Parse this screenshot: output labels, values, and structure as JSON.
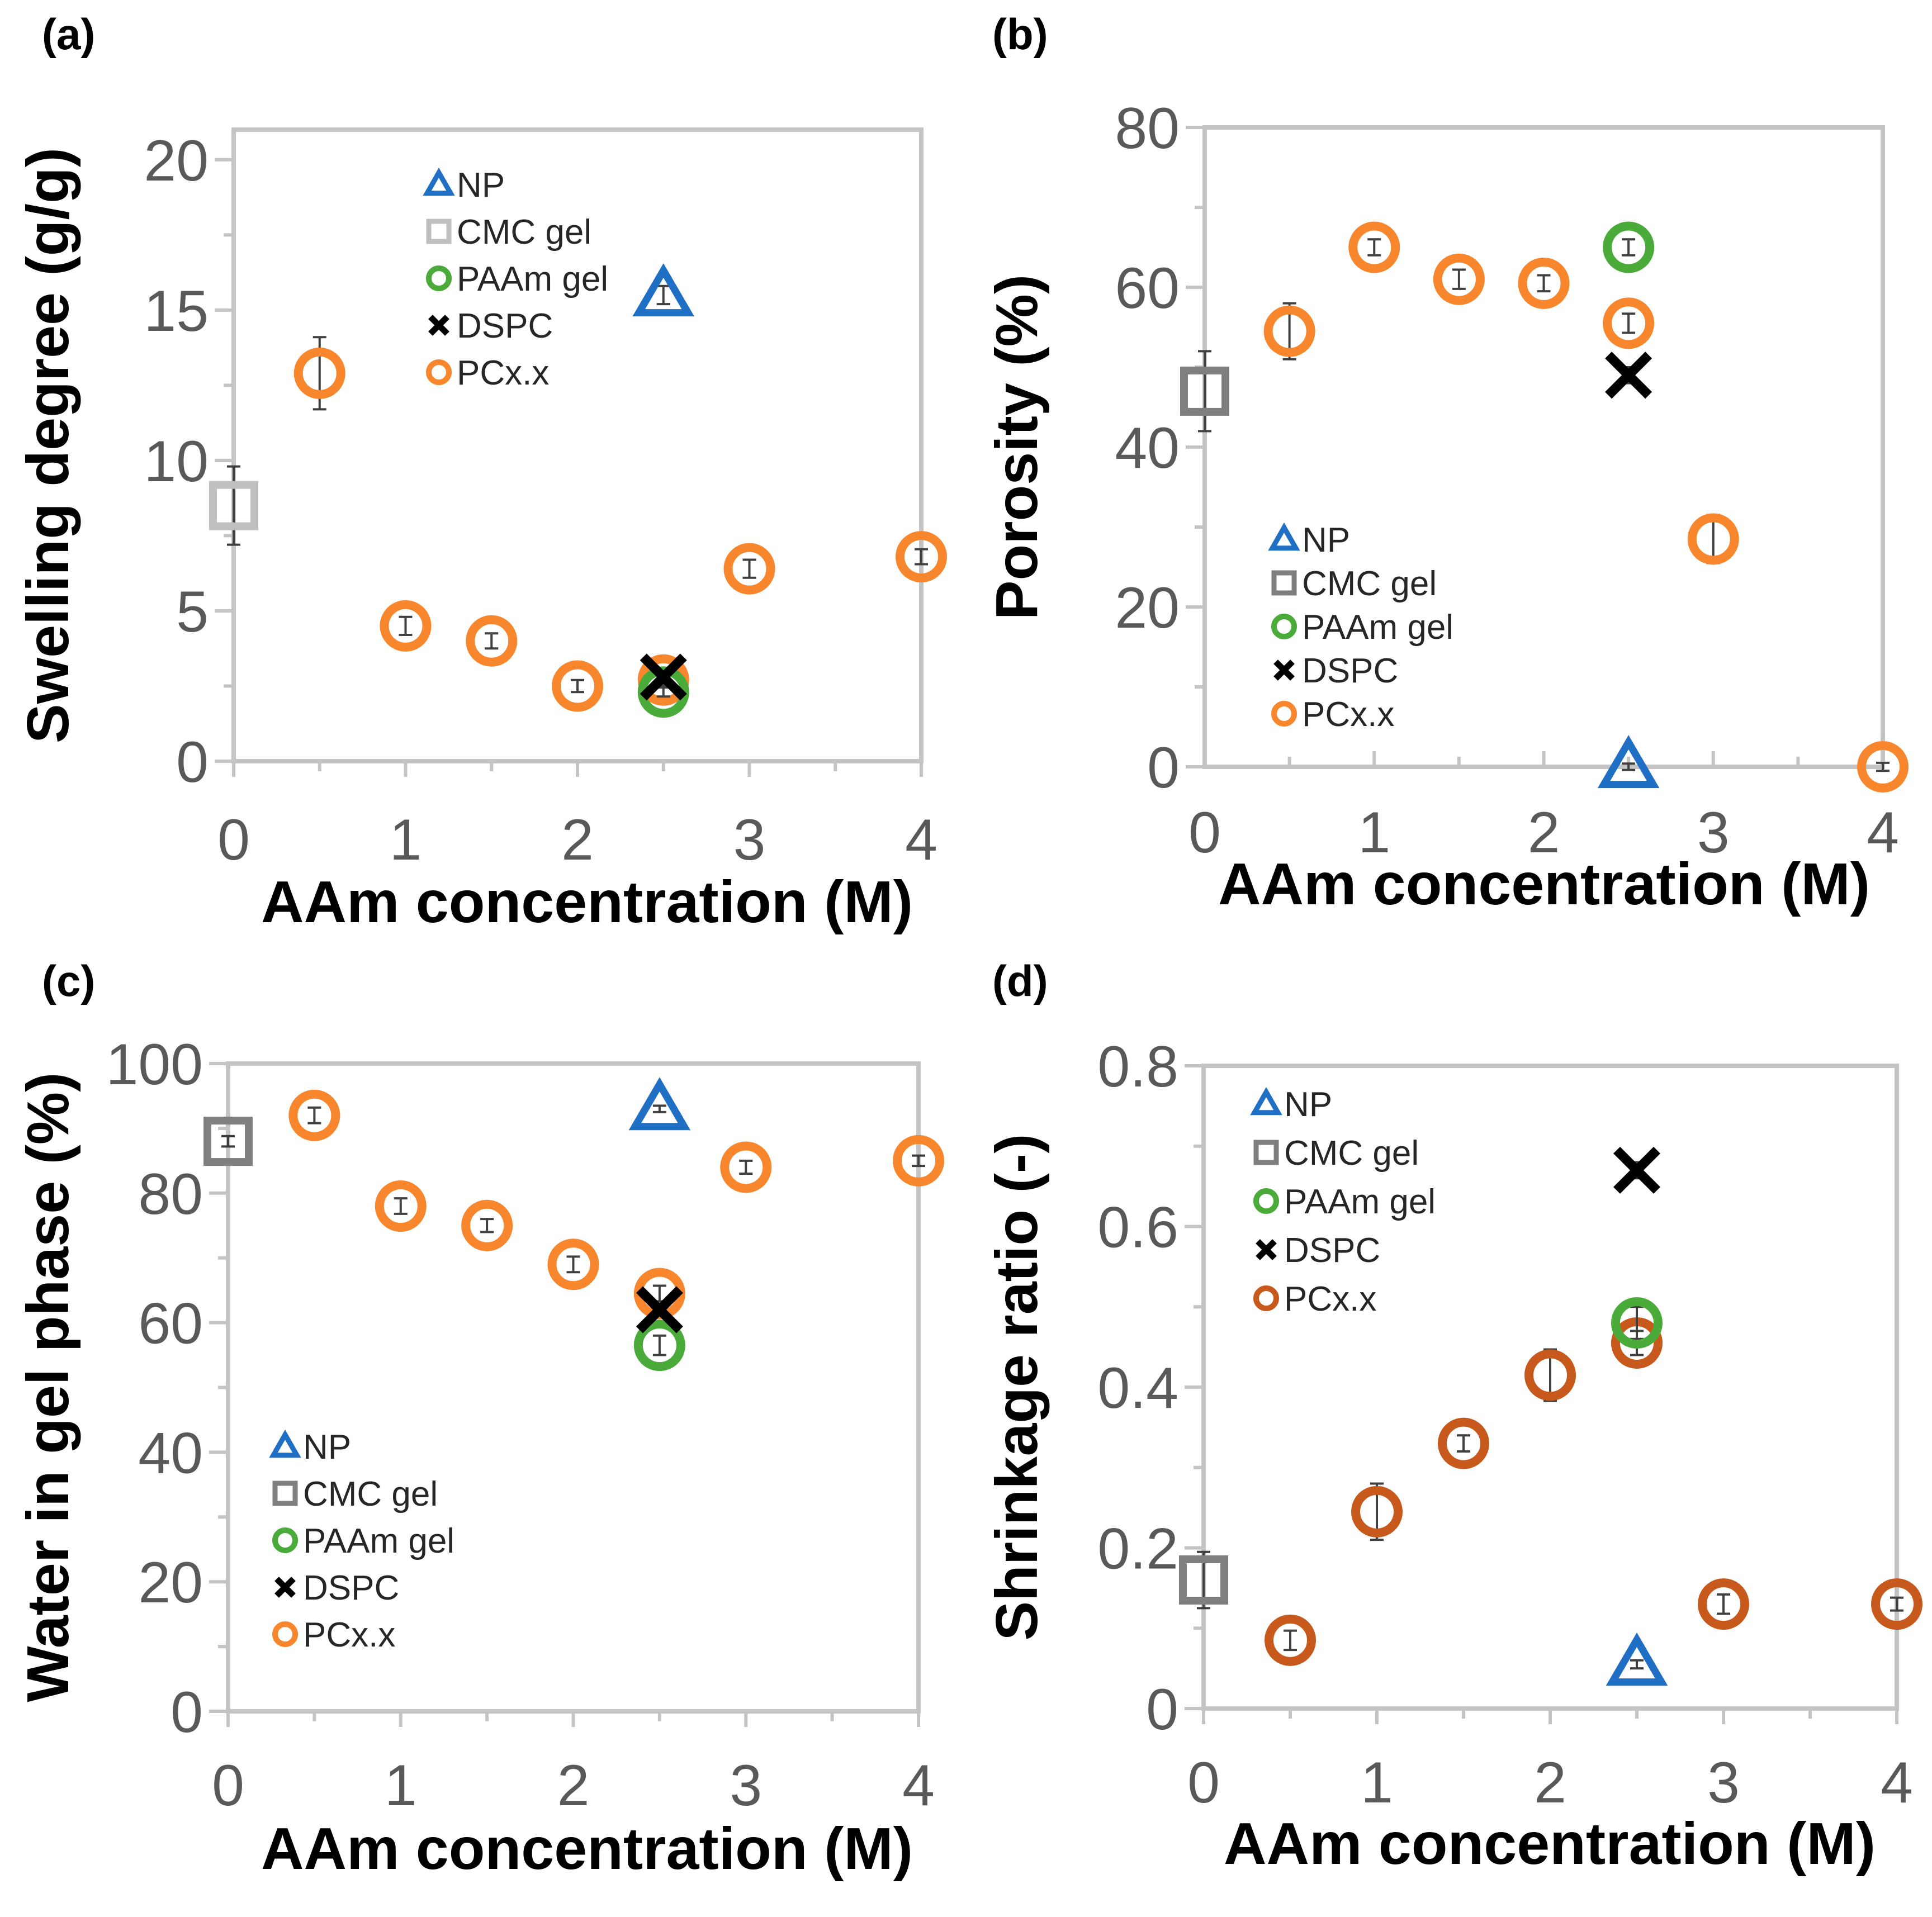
{
  "chart_data": [
    {
      "panel": "(a)",
      "type": "scatter",
      "xlabel": "AAm concentration (M)",
      "ylabel": "Swelling degree (g/g)",
      "xlim": [
        0,
        4
      ],
      "ylim": [
        0,
        21
      ],
      "xticks": [
        "0",
        "1",
        "2",
        "3",
        "4"
      ],
      "yticks": [
        "0",
        "5",
        "10",
        "15",
        "20"
      ],
      "ytick_values": [
        0,
        5,
        10,
        15,
        20
      ],
      "legend": [
        "NP",
        "CMC gel",
        "PAAm gel",
        "DSPC",
        "PCx.x"
      ],
      "series": [
        {
          "name": "NP",
          "marker": "triangle",
          "color": "#1f6fc5",
          "x": [
            2.5
          ],
          "y": [
            15.5
          ],
          "err": [
            0.3
          ]
        },
        {
          "name": "CMC gel",
          "marker": "square",
          "color": "#bfbfbf",
          "x": [
            0
          ],
          "y": [
            8.5
          ],
          "err": [
            1.3
          ]
        },
        {
          "name": "PAAm gel",
          "marker": "circle",
          "color": "#4aab3a",
          "x": [
            2.5
          ],
          "y": [
            2.3
          ],
          "err": [
            0.15
          ]
        },
        {
          "name": "DSPC",
          "marker": "cross",
          "color": "#000000",
          "x": [
            2.5
          ],
          "y": [
            2.8
          ],
          "err": [
            0.15
          ]
        },
        {
          "name": "PCx.x",
          "marker": "circle",
          "color": "#f7862c",
          "x": [
            0.5,
            1,
            1.5,
            2,
            2.5,
            3,
            4
          ],
          "y": [
            12.9,
            4.5,
            4.0,
            2.5,
            2.7,
            6.4,
            6.8
          ],
          "err": [
            1.2,
            0.3,
            0.25,
            0.2,
            0.2,
            0.3,
            0.25
          ]
        }
      ]
    },
    {
      "panel": "(b)",
      "type": "scatter",
      "xlabel": "AAm concentration (M)",
      "ylabel": "Porosity (%)",
      "xlim": [
        0,
        4
      ],
      "ylim": [
        0,
        80
      ],
      "xticks": [
        "0",
        "1",
        "2",
        "3",
        "4"
      ],
      "yticks": [
        "0",
        "20",
        "40",
        "60",
        "80"
      ],
      "ytick_values": [
        0,
        20,
        40,
        60,
        80
      ],
      "legend": [
        "NP",
        "CMC gel",
        "PAAm gel",
        "DSPC",
        "PCx.x"
      ],
      "series": [
        {
          "name": "NP",
          "marker": "triangle",
          "color": "#1f6fc5",
          "x": [
            2.5
          ],
          "y": [
            0
          ],
          "err": [
            0.4
          ]
        },
        {
          "name": "CMC gel",
          "marker": "square",
          "color": "#7f7f7f",
          "x": [
            0
          ],
          "y": [
            47
          ],
          "err": [
            5
          ]
        },
        {
          "name": "PAAm gel",
          "marker": "circle",
          "color": "#4aab3a",
          "x": [
            2.5
          ],
          "y": [
            65
          ],
          "err": [
            1
          ]
        },
        {
          "name": "DSPC",
          "marker": "cross",
          "color": "#000000",
          "x": [
            2.5
          ],
          "y": [
            49
          ],
          "err": [
            1
          ]
        },
        {
          "name": "PCx.x",
          "marker": "circle",
          "color": "#f7862c",
          "x": [
            0.5,
            1,
            1.5,
            2,
            2.5,
            3,
            4
          ],
          "y": [
            54.5,
            65,
            61,
            60.5,
            55.5,
            28.5,
            0
          ],
          "err": [
            3.5,
            1,
            1.2,
            1,
            1.2,
            3,
            0.5
          ]
        }
      ]
    },
    {
      "panel": "(c)",
      "type": "scatter",
      "xlabel": "AAm concentration (M)",
      "ylabel": "Water in gel phase (%)",
      "xlim": [
        0,
        4
      ],
      "ylim": [
        0,
        100
      ],
      "xticks": [
        "0",
        "1",
        "2",
        "3",
        "4"
      ],
      "yticks": [
        "0",
        "20",
        "40",
        "60",
        "80",
        "100"
      ],
      "ytick_values": [
        0,
        20,
        40,
        60,
        80,
        100
      ],
      "legend": [
        "NP",
        "CMC gel",
        "PAAm gel",
        "DSPC",
        "PCx.x"
      ],
      "series": [
        {
          "name": "NP",
          "marker": "triangle",
          "color": "#1f6fc5",
          "x": [
            2.5
          ],
          "y": [
            93
          ],
          "err": [
            0.5
          ]
        },
        {
          "name": "CMC gel",
          "marker": "square",
          "color": "#7f7f7f",
          "x": [
            0
          ],
          "y": [
            88
          ],
          "err": [
            0.8
          ]
        },
        {
          "name": "PAAm gel",
          "marker": "circle",
          "color": "#4aab3a",
          "x": [
            2.5
          ],
          "y": [
            56.5
          ],
          "err": [
            1.5
          ]
        },
        {
          "name": "DSPC",
          "marker": "cross",
          "color": "#000000",
          "x": [
            2.5
          ],
          "y": [
            62
          ],
          "err": [
            0.8
          ]
        },
        {
          "name": "PCx.x",
          "marker": "circle",
          "color": "#f7862c",
          "x": [
            0.5,
            1,
            1.5,
            2,
            2.5,
            3,
            4
          ],
          "y": [
            92,
            78,
            75,
            69,
            64.5,
            84,
            85
          ],
          "err": [
            1.2,
            1.2,
            1,
            1.2,
            1.2,
            1,
            0.8
          ]
        }
      ]
    },
    {
      "panel": "(d)",
      "type": "scatter",
      "xlabel": "AAm concentration (M)",
      "ylabel": "Shrinkage ratio (-)",
      "xlim": [
        0,
        4
      ],
      "ylim": [
        0,
        0.8
      ],
      "xticks": [
        "0",
        "1",
        "2",
        "3",
        "4"
      ],
      "yticks": [
        "0",
        "0.2",
        "0.4",
        "0.6",
        "0.8"
      ],
      "ytick_values": [
        0,
        0.2,
        0.4,
        0.6,
        0.8
      ],
      "legend": [
        "NP",
        "CMC gel",
        "PAAm gel",
        "DSPC",
        "PCx.x"
      ],
      "series": [
        {
          "name": "NP",
          "marker": "triangle",
          "color": "#1f6fc5",
          "x": [
            2.5
          ],
          "y": [
            0.055
          ],
          "err": [
            0.005
          ]
        },
        {
          "name": "CMC gel",
          "marker": "square",
          "color": "#7f7f7f",
          "x": [
            0
          ],
          "y": [
            0.16
          ],
          "err": [
            0.035
          ]
        },
        {
          "name": "PAAm gel",
          "marker": "circle",
          "color": "#4aab3a",
          "x": [
            2.5
          ],
          "y": [
            0.48
          ],
          "err": [
            0.02
          ]
        },
        {
          "name": "DSPC",
          "marker": "cross",
          "color": "#000000",
          "x": [
            2.5
          ],
          "y": [
            0.67
          ],
          "err": [
            0.01
          ]
        },
        {
          "name": "PCx.x",
          "marker": "circle",
          "color": "#c8591c",
          "x": [
            0.5,
            1,
            1.5,
            2,
            2.5,
            3,
            4
          ],
          "y": [
            0.085,
            0.245,
            0.33,
            0.415,
            0.455,
            0.13,
            0.13
          ],
          "err": [
            0.012,
            0.035,
            0.01,
            0.032,
            0.015,
            0.012,
            0.008
          ]
        }
      ]
    }
  ]
}
